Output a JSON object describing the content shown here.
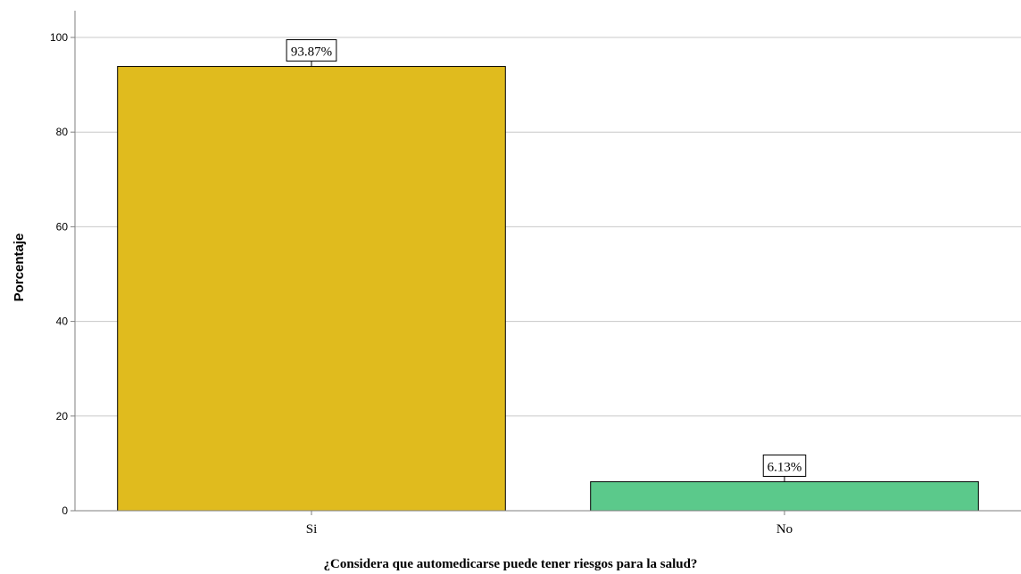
{
  "chart_data": {
    "type": "bar",
    "categories": [
      "Si",
      "No"
    ],
    "values": [
      93.87,
      6.13
    ],
    "data_labels": [
      "93.87%",
      "6.13%"
    ],
    "colors": [
      "#e0bb1e",
      "#5bc98b"
    ],
    "title": "",
    "xlabel": "¿Considera que automedicarse puede tener riesgos para la salud?",
    "ylabel": "Porcentaje",
    "ylim": [
      0,
      105
    ],
    "yticks": [
      0,
      20,
      40,
      60,
      80,
      100
    ],
    "grid": true
  }
}
